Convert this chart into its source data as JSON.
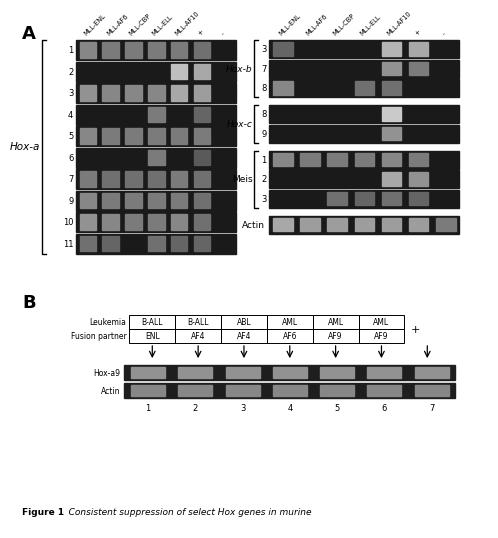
{
  "panel_A_label": "A",
  "panel_B_label": "B",
  "col_headers_5": [
    "MLL-ENL",
    "MLL-AF6",
    "MLL-CBP",
    "MLL-ELL",
    "MLL-AF10"
  ],
  "col_headers_pm": [
    "+",
    "-"
  ],
  "hoxa_rows": [
    "1",
    "2",
    "3",
    "4",
    "5",
    "6",
    "7",
    "9",
    "10",
    "11"
  ],
  "hoxa_label": "Hox-a",
  "hoxa_patterns": [
    [
      [
        0,
        0.6
      ],
      [
        1,
        0.55
      ],
      [
        2,
        0.55
      ],
      [
        3,
        0.55
      ],
      [
        4,
        0.55
      ],
      [
        5,
        0.5
      ],
      [
        6,
        0.0
      ]
    ],
    [
      [
        4,
        0.85
      ],
      [
        5,
        0.75
      ],
      [
        6,
        0.0
      ]
    ],
    [
      [
        0,
        0.65
      ],
      [
        1,
        0.6
      ],
      [
        2,
        0.6
      ],
      [
        3,
        0.6
      ],
      [
        4,
        0.75
      ],
      [
        5,
        0.7
      ],
      [
        6,
        0.0
      ]
    ],
    [
      [
        3,
        0.55
      ],
      [
        5,
        0.45
      ],
      [
        6,
        0.0
      ]
    ],
    [
      [
        0,
        0.6
      ],
      [
        1,
        0.55
      ],
      [
        2,
        0.55
      ],
      [
        3,
        0.55
      ],
      [
        4,
        0.55
      ],
      [
        5,
        0.55
      ],
      [
        6,
        0.0
      ]
    ],
    [
      [
        3,
        0.55
      ],
      [
        5,
        0.4
      ],
      [
        6,
        0.0
      ]
    ],
    [
      [
        0,
        0.55
      ],
      [
        1,
        0.5
      ],
      [
        2,
        0.5
      ],
      [
        3,
        0.5
      ],
      [
        4,
        0.55
      ],
      [
        5,
        0.5
      ],
      [
        6,
        0.0
      ]
    ],
    [
      [
        0,
        0.6
      ],
      [
        1,
        0.55
      ],
      [
        2,
        0.55
      ],
      [
        3,
        0.55
      ],
      [
        4,
        0.55
      ],
      [
        5,
        0.5
      ],
      [
        6,
        0.0
      ]
    ],
    [
      [
        0,
        0.65
      ],
      [
        1,
        0.6
      ],
      [
        2,
        0.55
      ],
      [
        3,
        0.55
      ],
      [
        4,
        0.6
      ],
      [
        5,
        0.5
      ],
      [
        6,
        0.0
      ]
    ],
    [
      [
        0,
        0.5
      ],
      [
        1,
        0.45
      ],
      [
        3,
        0.5
      ],
      [
        4,
        0.45
      ],
      [
        5,
        0.45
      ],
      [
        6,
        0.0
      ]
    ]
  ],
  "right_groups": [
    {
      "label": "Hox-b",
      "rows": [
        "3",
        "7",
        "8"
      ],
      "italic": true,
      "patterns": [
        [
          [
            0,
            0.45
          ],
          [
            4,
            0.8
          ],
          [
            5,
            0.75
          ],
          [
            6,
            0.0
          ]
        ],
        [
          [
            4,
            0.65
          ],
          [
            5,
            0.55
          ],
          [
            6,
            0.0
          ]
        ],
        [
          [
            0,
            0.6
          ],
          [
            3,
            0.5
          ],
          [
            4,
            0.5
          ],
          [
            6,
            0.0
          ]
        ]
      ]
    },
    {
      "label": "Hox-c",
      "rows": [
        "8",
        "9"
      ],
      "italic": true,
      "patterns": [
        [
          [
            4,
            0.9
          ],
          [
            5,
            0.0
          ],
          [
            6,
            0.0
          ]
        ],
        [
          [
            4,
            0.65
          ],
          [
            5,
            0.0
          ],
          [
            6,
            0.0
          ]
        ]
      ]
    },
    {
      "label": "Meis",
      "rows": [
        "1",
        "2",
        "3"
      ],
      "italic": false,
      "patterns": [
        [
          [
            0,
            0.6
          ],
          [
            1,
            0.55
          ],
          [
            2,
            0.55
          ],
          [
            3,
            0.55
          ],
          [
            4,
            0.6
          ],
          [
            5,
            0.55
          ],
          [
            6,
            0.0
          ]
        ],
        [
          [
            4,
            0.75
          ],
          [
            5,
            0.65
          ],
          [
            6,
            0.0
          ]
        ],
        [
          [
            2,
            0.5
          ],
          [
            3,
            0.45
          ],
          [
            4,
            0.5
          ],
          [
            5,
            0.45
          ],
          [
            6,
            0.0
          ]
        ]
      ]
    },
    {
      "label": "Actin",
      "rows": [
        ""
      ],
      "italic": false,
      "patterns": [
        [
          [
            0,
            0.75
          ],
          [
            1,
            0.7
          ],
          [
            2,
            0.7
          ],
          [
            3,
            0.7
          ],
          [
            4,
            0.7
          ],
          [
            5,
            0.7
          ],
          [
            6,
            0.55
          ]
        ]
      ]
    }
  ],
  "panel_B": {
    "leukemia_row": [
      "B-ALL",
      "B-ALL",
      "ABL",
      "AML",
      "AML",
      "AML"
    ],
    "fusion_row": [
      "ENL",
      "AF4",
      "AF4",
      "AF6",
      "AF9",
      "AF9"
    ],
    "plus_label": "+",
    "lanes": [
      "1",
      "2",
      "3",
      "4",
      "5",
      "6",
      "7"
    ],
    "hox_a9_pattern": [
      0.65,
      0.65,
      0.65,
      0.65,
      0.65,
      0.65,
      0.65
    ],
    "actin_pattern": [
      0.6,
      0.6,
      0.6,
      0.6,
      0.6,
      0.6,
      0.6
    ]
  },
  "caption_bold": "Figure 1",
  "caption_italic": "   Consistent suppression of select Hox genes in murine",
  "bg_color": "#ffffff",
  "gel_bg": "#1a1a1a",
  "gel_bg_light": "#2a2a2a"
}
